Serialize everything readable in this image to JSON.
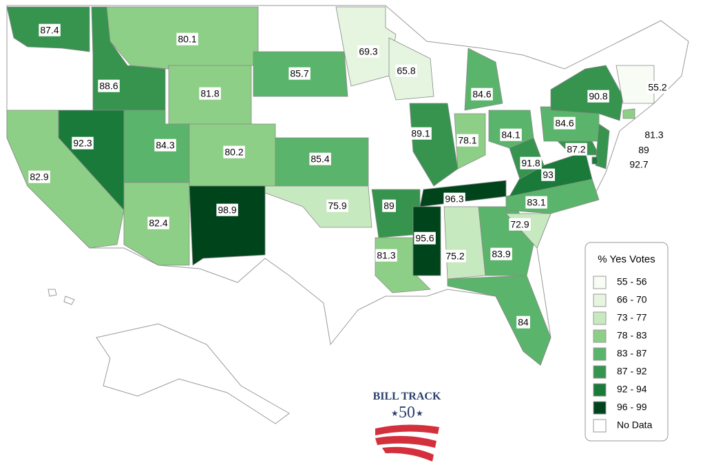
{
  "map": {
    "legend": {
      "title": "% Yes Votes",
      "items": [
        {
          "label": "55 - 56",
          "color": "#f7fcf5"
        },
        {
          "label": "66 - 70",
          "color": "#e5f5e0"
        },
        {
          "label": "73 - 77",
          "color": "#c7e9c0"
        },
        {
          "label": "78 - 83",
          "color": "#8ecf87"
        },
        {
          "label": "83 - 87",
          "color": "#5bb46b"
        },
        {
          "label": "87 - 92",
          "color": "#37944f"
        },
        {
          "label": "92 - 94",
          "color": "#1a7a3a"
        },
        {
          "label": "96 - 99",
          "color": "#00441b"
        },
        {
          "label": "No Data",
          "color": "#ffffff"
        }
      ]
    },
    "regions": [
      {
        "value": 87.4,
        "color": "#37944f"
      },
      {
        "value": 88.6,
        "color": "#37944f"
      },
      {
        "value": 80.1,
        "color": "#8ecf87"
      },
      {
        "value": 81.8,
        "color": "#8ecf87"
      },
      {
        "value": 85.7,
        "color": "#5bb46b"
      },
      {
        "value": 69.3,
        "color": "#e5f5e0"
      },
      {
        "value": 65.8,
        "color": "#e5f5e0"
      },
      {
        "value": 84.6,
        "color": "#5bb46b"
      },
      {
        "value": 92.3,
        "color": "#1a7a3a"
      },
      {
        "value": 82.9,
        "color": "#8ecf87"
      },
      {
        "value": 84.3,
        "color": "#5bb46b"
      },
      {
        "value": 80.2,
        "color": "#8ecf87"
      },
      {
        "value": 82.4,
        "color": "#8ecf87"
      },
      {
        "value": 98.9,
        "color": "#00441b"
      },
      {
        "value": 85.4,
        "color": "#5bb46b"
      },
      {
        "value": 75.9,
        "color": "#c7e9c0"
      },
      {
        "value": 89.0,
        "color": "#37944f"
      },
      {
        "value": 81.3,
        "color": "#8ecf87"
      },
      {
        "value": 95.6,
        "color": "#00441b"
      },
      {
        "value": 75.2,
        "color": "#c7e9c0"
      },
      {
        "value": 96.3,
        "color": "#00441b"
      },
      {
        "value": 83.9,
        "color": "#5bb46b"
      },
      {
        "value": 84.0,
        "color": "#5bb46b"
      },
      {
        "value": 72.9,
        "color": "#c7e9c0"
      },
      {
        "value": 83.1,
        "color": "#5bb46b"
      },
      {
        "value": 93.0,
        "color": "#1a7a3a"
      },
      {
        "value": 91.8,
        "color": "#37944f"
      },
      {
        "value": 84.1,
        "color": "#5bb46b"
      },
      {
        "value": 78.1,
        "color": "#8ecf87"
      },
      {
        "value": 89.1,
        "color": "#37944f"
      },
      {
        "value": 84.6,
        "color": "#5bb46b"
      },
      {
        "value": 90.8,
        "color": "#37944f"
      },
      {
        "value": 87.2,
        "color": "#37944f"
      },
      {
        "value": 55.2,
        "color": "#f7fcf5"
      },
      {
        "value": 81.3,
        "color": "#8ecf87"
      },
      {
        "value": 89.0,
        "color": "#37944f"
      },
      {
        "value": 92.7,
        "color": "#1a7a3a"
      }
    ]
  },
  "logo": {
    "name": "BILL TRACK",
    "number": "50"
  }
}
